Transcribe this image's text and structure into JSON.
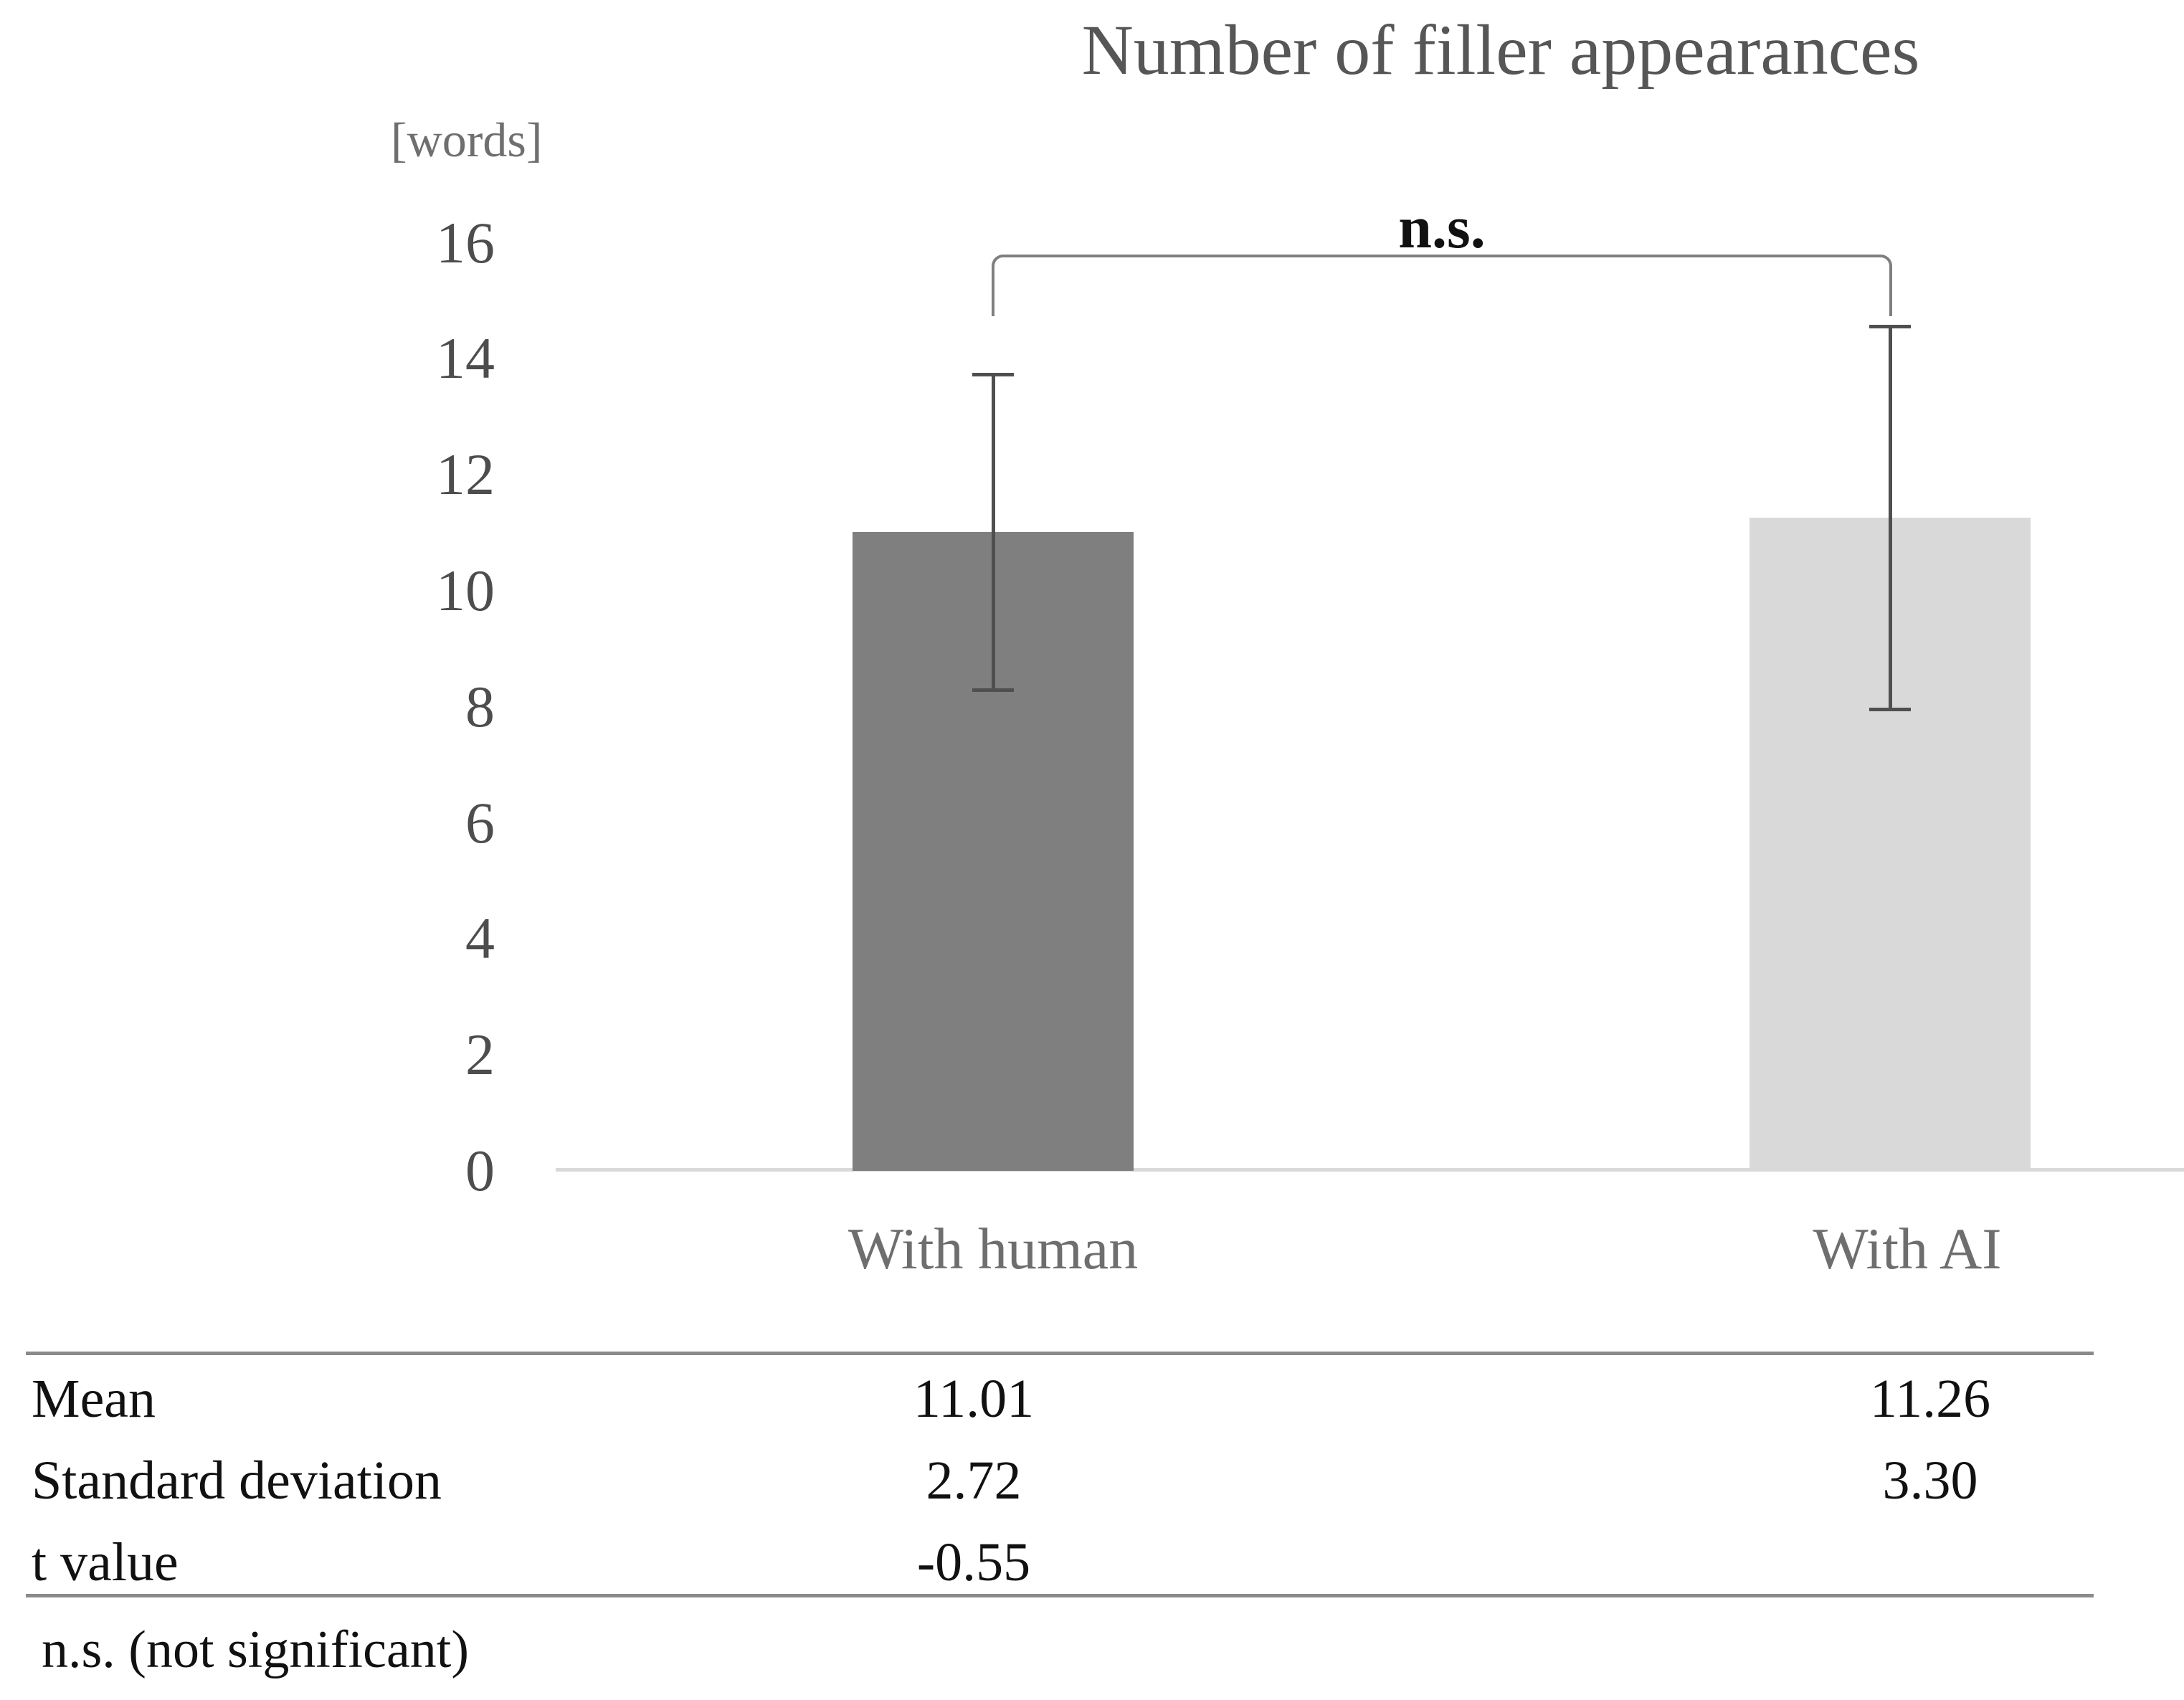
{
  "chart_data": {
    "type": "bar",
    "title": "Number of filler appearances",
    "unit_label": "[words]",
    "categories": [
      "With human",
      "With AI"
    ],
    "values": [
      11.01,
      11.26
    ],
    "error_values": [
      2.72,
      3.3
    ],
    "error_bar_style": "plus-minus one standard deviation",
    "yticks": [
      16,
      14,
      12,
      10,
      8,
      6,
      4,
      2,
      0
    ],
    "ylim": [
      0,
      16
    ],
    "bar_colors": [
      "#7f7f7f",
      "#d9d9d9"
    ],
    "significance_label": "n.s.",
    "grid": "off",
    "legend": "none"
  },
  "table": {
    "rows": [
      {
        "label": "Mean",
        "with_human": "11.01",
        "with_ai": "11.26"
      },
      {
        "label": "Standard deviation",
        "with_human": "2.72",
        "with_ai": "3.30"
      },
      {
        "label": "t value",
        "with_human": "-0.55",
        "with_ai": ""
      }
    ]
  },
  "footnote": "n.s. (not significant)"
}
